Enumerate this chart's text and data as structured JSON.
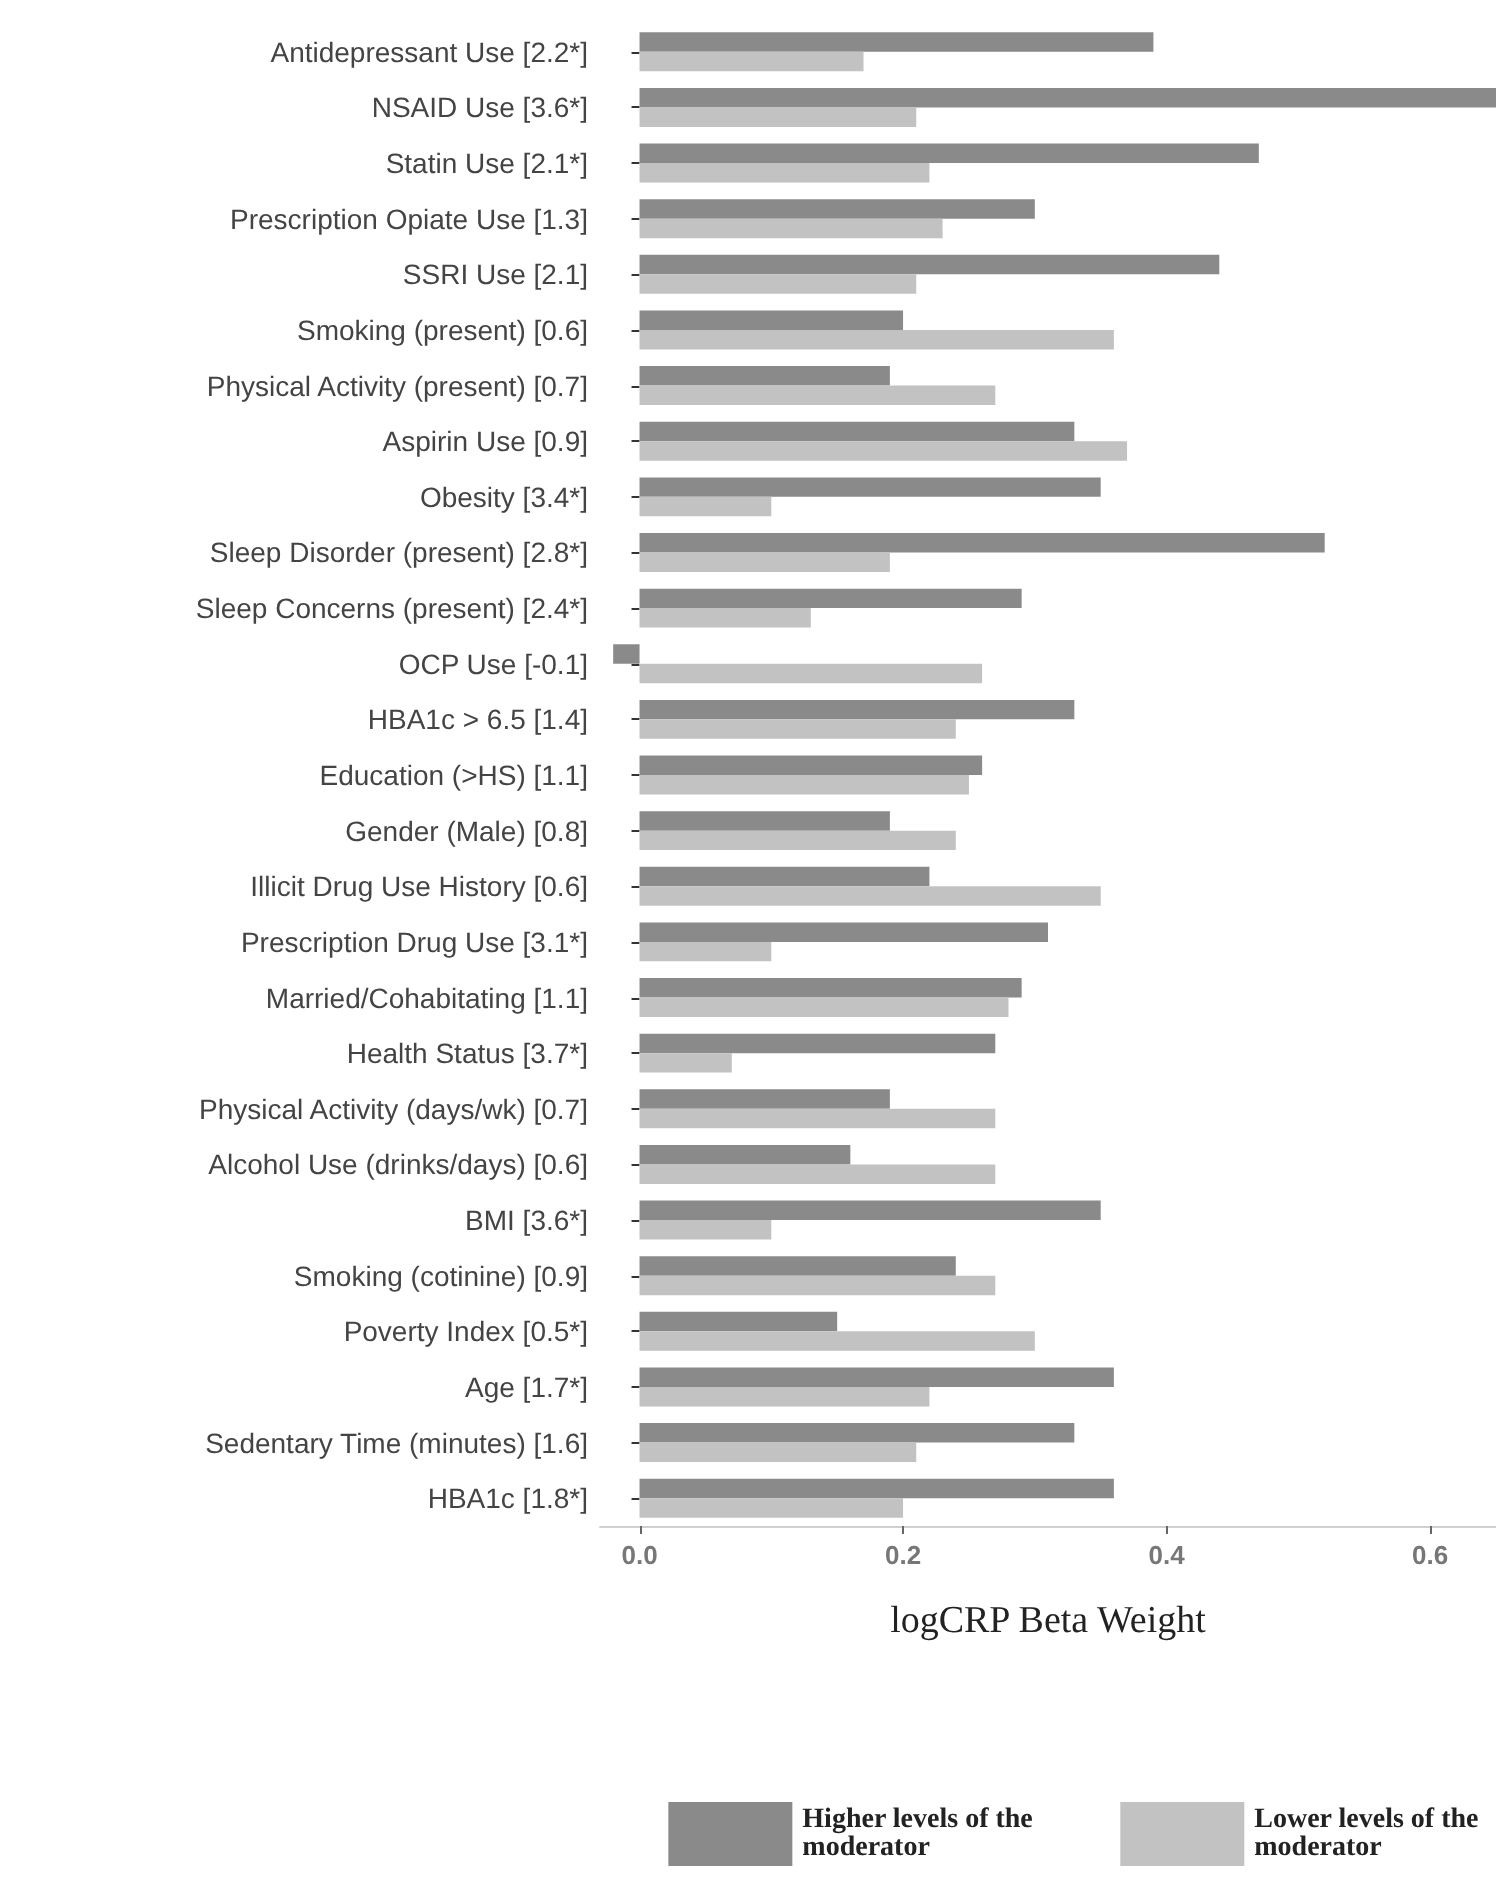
{
  "chart_data": {
    "type": "bar",
    "orientation": "horizontal",
    "xlabel": "logCRP Beta Weight",
    "categories": [
      "Antidepressant Use [2.2*]",
      "NSAID Use [3.6*]",
      "Statin Use [2.1*]",
      "Prescription Opiate Use [1.3]",
      "SSRI Use [2.1]",
      "Smoking (present) [0.6]",
      "Physical Activity (present) [0.7]",
      "Aspirin Use [0.9]",
      "Obesity [3.4*]",
      "Sleep Disorder (present) [2.8*]",
      "Sleep Concerns (present) [2.4*]",
      "OCP Use [-0.1]",
      "HBA1c > 6.5 [1.4]",
      "Education (>HS) [1.1]",
      "Gender (Male) [0.8]",
      "Illicit Drug Use History [0.6]",
      "Prescription Drug Use [3.1*]",
      "Married/Cohabitating [1.1]",
      "Health Status [3.7*]",
      "Physical Activity (days/wk) [0.7]",
      "Alcohol Use (drinks/days) [0.6]",
      "BMI [3.6*]",
      "Smoking (cotinine) [0.9]",
      "Poverty Index [0.5*]",
      "Age [1.7*]",
      "Sedentary Time (minutes) [1.6]",
      "HBA1c [1.8*]"
    ],
    "series": [
      {
        "name": "Higher levels of the moderator",
        "color": "#8a8a8a",
        "values": [
          0.39,
          0.65,
          0.47,
          0.3,
          0.44,
          0.2,
          0.19,
          0.33,
          0.35,
          0.52,
          0.29,
          -0.02,
          0.33,
          0.26,
          0.19,
          0.22,
          0.31,
          0.29,
          0.27,
          0.19,
          0.16,
          0.35,
          0.24,
          0.15,
          0.36,
          0.33,
          0.36
        ]
      },
      {
        "name": "Lower levels of the moderator",
        "color": "#c2c2c2",
        "values": [
          0.17,
          0.21,
          0.22,
          0.23,
          0.21,
          0.36,
          0.27,
          0.37,
          0.1,
          0.19,
          0.13,
          0.26,
          0.24,
          0.25,
          0.24,
          0.35,
          0.1,
          0.28,
          0.07,
          0.27,
          0.27,
          0.1,
          0.27,
          0.3,
          0.22,
          0.21,
          0.2
        ]
      }
    ],
    "xlim": [
      -0.03,
      0.65
    ],
    "xticks": [
      {
        "value": 0,
        "label": "0.0"
      },
      {
        "value": 0.2,
        "label": "0.2"
      },
      {
        "value": 0.4,
        "label": "0.4"
      },
      {
        "value": 0.6,
        "label": "0.6"
      }
    ],
    "grid": false,
    "legend": "bottom"
  }
}
